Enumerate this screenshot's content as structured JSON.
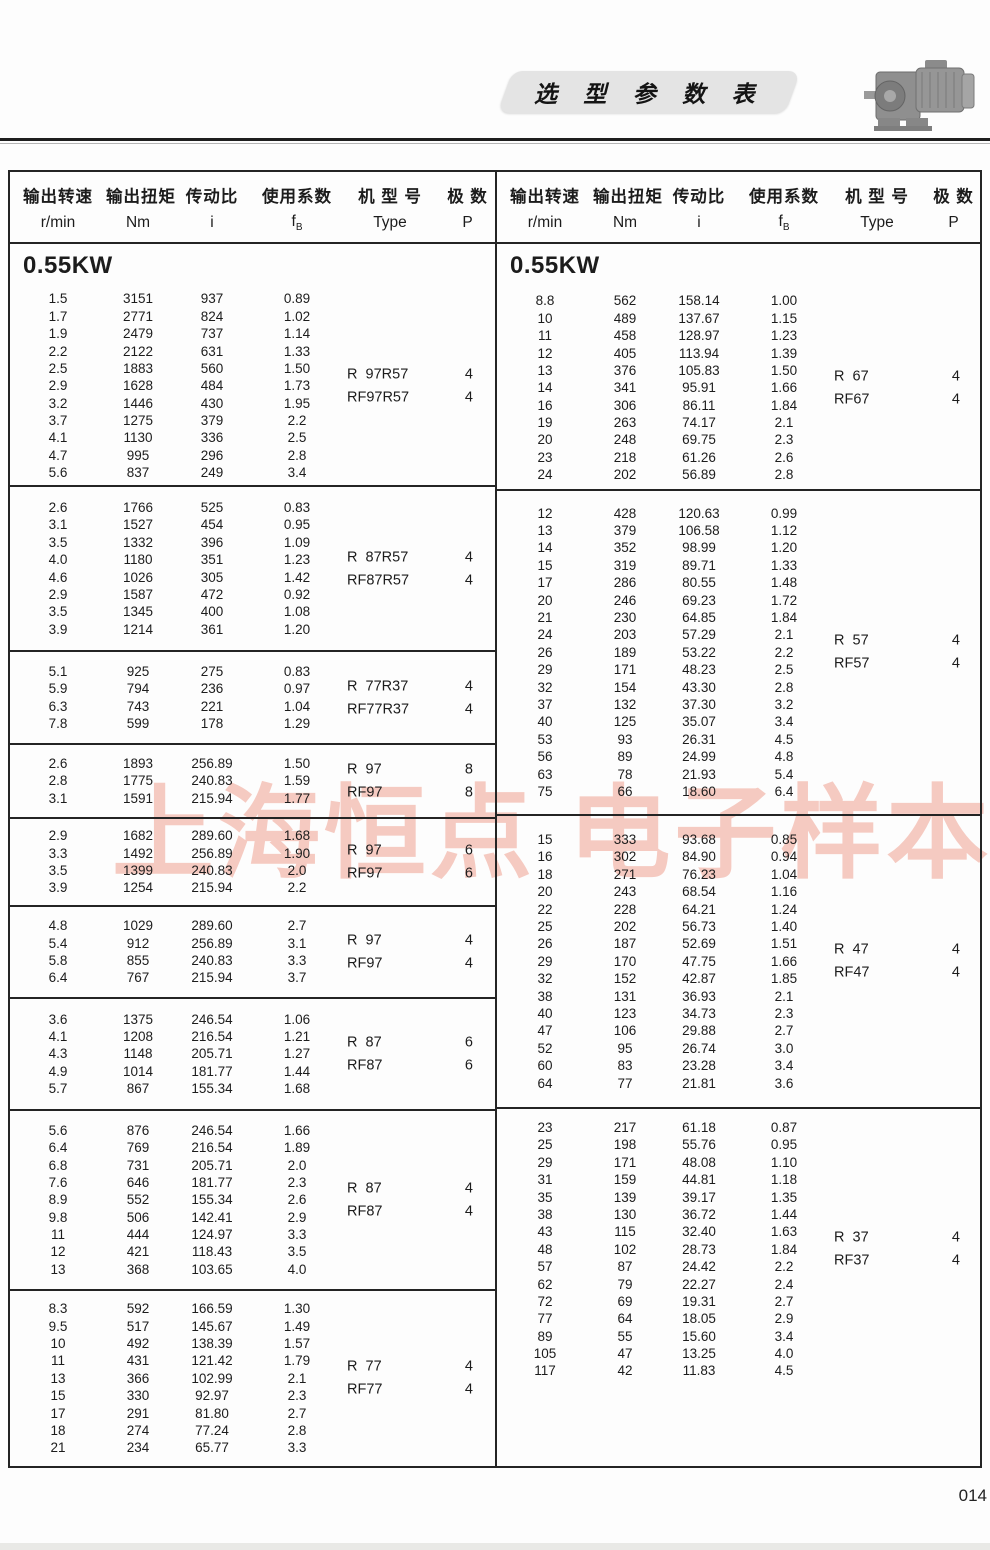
{
  "page": {
    "title": "选 型 参 数 表",
    "watermark": "上海恒点 电子样本",
    "page_number": "014"
  },
  "header": {
    "labels": [
      "输出转速",
      "输出扭矩",
      "传动比",
      "使用系数",
      "机 型 号",
      "极  数"
    ],
    "units": [
      "r/min",
      "Nm",
      "i",
      "fB",
      "Type",
      "P"
    ],
    "fb_base": "f",
    "fb_sub": "B"
  },
  "left_table": {
    "power": "0.55KW",
    "blocks": [
      {
        "rows": [
          [
            "1.5",
            "3151",
            "937",
            "0.89"
          ],
          [
            "1.7",
            "2771",
            "824",
            "1.02"
          ],
          [
            "1.9",
            "2479",
            "737",
            "1.14"
          ],
          [
            "2.2",
            "2122",
            "631",
            "1.33"
          ],
          [
            "2.5",
            "1883",
            "560",
            "1.50"
          ],
          [
            "2.9",
            "1628",
            "484",
            "1.73"
          ],
          [
            "3.2",
            "1446",
            "430",
            "1.95"
          ],
          [
            "3.7",
            "1275",
            "379",
            "2.2"
          ],
          [
            "4.1",
            "1130",
            "336",
            "2.5"
          ],
          [
            "4.7",
            "995",
            "296",
            "2.8"
          ],
          [
            "5.6",
            "837",
            "249",
            "3.4"
          ]
        ],
        "types": [
          {
            "label": "R  97R57",
            "p": "4"
          },
          {
            "label": "RF97R57",
            "p": "4"
          }
        ]
      },
      {
        "rows": [
          [
            "2.6",
            "1766",
            "525",
            "0.83"
          ],
          [
            "3.1",
            "1527",
            "454",
            "0.95"
          ],
          [
            "3.5",
            "1332",
            "396",
            "1.09"
          ],
          [
            "4.0",
            "1180",
            "351",
            "1.23"
          ],
          [
            "4.6",
            "1026",
            "305",
            "1.42"
          ],
          [
            "2.9",
            "1587",
            "472",
            "0.92"
          ],
          [
            "3.5",
            "1345",
            "400",
            "1.08"
          ],
          [
            "3.9",
            "1214",
            "361",
            "1.20"
          ]
        ],
        "types": [
          {
            "label": "R  87R57",
            "p": "4"
          },
          {
            "label": "RF87R57",
            "p": "4"
          }
        ]
      },
      {
        "rows": [
          [
            "5.1",
            "925",
            "275",
            "0.83"
          ],
          [
            "5.9",
            "794",
            "236",
            "0.97"
          ],
          [
            "6.3",
            "743",
            "221",
            "1.04"
          ],
          [
            "7.8",
            "599",
            "178",
            "1.29"
          ]
        ],
        "types": [
          {
            "label": "R  77R37",
            "p": "4"
          },
          {
            "label": "RF77R37",
            "p": "4"
          }
        ]
      },
      {
        "rows": [
          [
            "2.6",
            "1893",
            "256.89",
            "1.50"
          ],
          [
            "2.8",
            "1775",
            "240.83",
            "1.59"
          ],
          [
            "3.1",
            "1591",
            "215.94",
            "1.77"
          ]
        ],
        "types": [
          {
            "label": "R  97",
            "p": "8"
          },
          {
            "label": "RF97",
            "p": "8"
          }
        ]
      },
      {
        "rows": [
          [
            "2.9",
            "1682",
            "289.60",
            "1.68"
          ],
          [
            "3.3",
            "1492",
            "256.89",
            "1.90"
          ],
          [
            "3.5",
            "1399",
            "240.83",
            "2.0"
          ],
          [
            "3.9",
            "1254",
            "215.94",
            "2.2"
          ]
        ],
        "types": [
          {
            "label": "R  97",
            "p": "6"
          },
          {
            "label": "RF97",
            "p": "6"
          }
        ]
      },
      {
        "rows": [
          [
            "4.8",
            "1029",
            "289.60",
            "2.7"
          ],
          [
            "5.4",
            "912",
            "256.89",
            "3.1"
          ],
          [
            "5.8",
            "855",
            "240.83",
            "3.3"
          ],
          [
            "6.4",
            "767",
            "215.94",
            "3.7"
          ]
        ],
        "types": [
          {
            "label": "R  97",
            "p": "4"
          },
          {
            "label": "RF97",
            "p": "4"
          }
        ]
      },
      {
        "rows": [
          [
            "3.6",
            "1375",
            "246.54",
            "1.06"
          ],
          [
            "4.1",
            "1208",
            "216.54",
            "1.21"
          ],
          [
            "4.3",
            "1148",
            "205.71",
            "1.27"
          ],
          [
            "4.9",
            "1014",
            "181.77",
            "1.44"
          ],
          [
            "5.7",
            "867",
            "155.34",
            "1.68"
          ]
        ],
        "types": [
          {
            "label": "R  87",
            "p": "6"
          },
          {
            "label": "RF87",
            "p": "6"
          }
        ]
      },
      {
        "rows": [
          [
            "5.6",
            "876",
            "246.54",
            "1.66"
          ],
          [
            "6.4",
            "769",
            "216.54",
            "1.89"
          ],
          [
            "6.8",
            "731",
            "205.71",
            "2.0"
          ],
          [
            "7.6",
            "646",
            "181.77",
            "2.3"
          ],
          [
            "8.9",
            "552",
            "155.34",
            "2.6"
          ],
          [
            "9.8",
            "506",
            "142.41",
            "2.9"
          ],
          [
            "11",
            "444",
            "124.97",
            "3.3"
          ],
          [
            "12",
            "421",
            "118.43",
            "3.5"
          ],
          [
            "13",
            "368",
            "103.65",
            "4.0"
          ]
        ],
        "types": [
          {
            "label": "R  87",
            "p": "4"
          },
          {
            "label": "RF87",
            "p": "4"
          }
        ]
      },
      {
        "rows": [
          [
            "8.3",
            "592",
            "166.59",
            "1.30"
          ],
          [
            "9.5",
            "517",
            "145.67",
            "1.49"
          ],
          [
            "10",
            "492",
            "138.39",
            "1.57"
          ],
          [
            "11",
            "431",
            "121.42",
            "1.79"
          ],
          [
            "13",
            "366",
            "102.99",
            "2.1"
          ],
          [
            "15",
            "330",
            "92.97",
            "2.3"
          ],
          [
            "17",
            "291",
            "81.80",
            "2.7"
          ],
          [
            "18",
            "274",
            "77.24",
            "2.8"
          ],
          [
            "21",
            "234",
            "65.77",
            "3.3"
          ]
        ],
        "types": [
          {
            "label": "R  77",
            "p": "4"
          },
          {
            "label": "RF77",
            "p": "4"
          }
        ]
      }
    ]
  },
  "right_table": {
    "power": "0.55KW",
    "blocks": [
      {
        "rows": [
          [
            "8.8",
            "562",
            "158.14",
            "1.00"
          ],
          [
            "10",
            "489",
            "137.67",
            "1.15"
          ],
          [
            "11",
            "458",
            "128.97",
            "1.23"
          ],
          [
            "12",
            "405",
            "113.94",
            "1.39"
          ],
          [
            "13",
            "376",
            "105.83",
            "1.50"
          ],
          [
            "14",
            "341",
            "95.91",
            "1.66"
          ],
          [
            "16",
            "306",
            "86.11",
            "1.84"
          ],
          [
            "19",
            "263",
            "74.17",
            "2.1"
          ],
          [
            "20",
            "248",
            "69.75",
            "2.3"
          ],
          [
            "23",
            "218",
            "61.26",
            "2.6"
          ],
          [
            "24",
            "202",
            "56.89",
            "2.8"
          ]
        ],
        "types": [
          {
            "label": "R  67",
            "p": "4"
          },
          {
            "label": "RF67",
            "p": "4"
          }
        ]
      },
      {
        "rows": [
          [
            "12",
            "428",
            "120.63",
            "0.99"
          ],
          [
            "13",
            "379",
            "106.58",
            "1.12"
          ],
          [
            "14",
            "352",
            "98.99",
            "1.20"
          ],
          [
            "15",
            "319",
            "89.71",
            "1.33"
          ],
          [
            "17",
            "286",
            "80.55",
            "1.48"
          ],
          [
            "20",
            "246",
            "69.23",
            "1.72"
          ],
          [
            "21",
            "230",
            "64.85",
            "1.84"
          ],
          [
            "24",
            "203",
            "57.29",
            "2.1"
          ],
          [
            "26",
            "189",
            "53.22",
            "2.2"
          ],
          [
            "29",
            "171",
            "48.23",
            "2.5"
          ],
          [
            "32",
            "154",
            "43.30",
            "2.8"
          ],
          [
            "37",
            "132",
            "37.30",
            "3.2"
          ],
          [
            "40",
            "125",
            "35.07",
            "3.4"
          ],
          [
            "53",
            "93",
            "26.31",
            "4.5"
          ],
          [
            "56",
            "89",
            "24.99",
            "4.8"
          ],
          [
            "63",
            "78",
            "21.93",
            "5.4"
          ],
          [
            "75",
            "66",
            "18.60",
            "6.4"
          ]
        ],
        "types": [
          {
            "label": "R  57",
            "p": "4"
          },
          {
            "label": "RF57",
            "p": "4"
          }
        ]
      },
      {
        "rows": [
          [
            "15",
            "333",
            "93.68",
            "0.85"
          ],
          [
            "16",
            "302",
            "84.90",
            "0.94"
          ],
          [
            "18",
            "271",
            "76.23",
            "1.04"
          ],
          [
            "20",
            "243",
            "68.54",
            "1.16"
          ],
          [
            "22",
            "228",
            "64.21",
            "1.24"
          ],
          [
            "25",
            "202",
            "56.73",
            "1.40"
          ],
          [
            "26",
            "187",
            "52.69",
            "1.51"
          ],
          [
            "29",
            "170",
            "47.75",
            "1.66"
          ],
          [
            "32",
            "152",
            "42.87",
            "1.85"
          ],
          [
            "38",
            "131",
            "36.93",
            "2.1"
          ],
          [
            "40",
            "123",
            "34.73",
            "2.3"
          ],
          [
            "47",
            "106",
            "29.88",
            "2.7"
          ],
          [
            "52",
            "95",
            "26.74",
            "3.0"
          ],
          [
            "60",
            "83",
            "23.28",
            "3.4"
          ],
          [
            "64",
            "77",
            "21.81",
            "3.6"
          ]
        ],
        "types": [
          {
            "label": "R  47",
            "p": "4"
          },
          {
            "label": "RF47",
            "p": "4"
          }
        ]
      },
      {
        "rows": [
          [
            "23",
            "217",
            "61.18",
            "0.87"
          ],
          [
            "25",
            "198",
            "55.76",
            "0.95"
          ],
          [
            "29",
            "171",
            "48.08",
            "1.10"
          ],
          [
            "31",
            "159",
            "44.81",
            "1.18"
          ],
          [
            "35",
            "139",
            "39.17",
            "1.35"
          ],
          [
            "38",
            "130",
            "36.72",
            "1.44"
          ],
          [
            "43",
            "115",
            "32.40",
            "1.63"
          ],
          [
            "48",
            "102",
            "28.73",
            "1.84"
          ],
          [
            "57",
            "87",
            "24.42",
            "2.2"
          ],
          [
            "62",
            "79",
            "22.27",
            "2.4"
          ],
          [
            "72",
            "69",
            "19.31",
            "2.7"
          ],
          [
            "77",
            "64",
            "18.05",
            "2.9"
          ],
          [
            "89",
            "55",
            "15.60",
            "3.4"
          ],
          [
            "105",
            "47",
            "13.25",
            "4.0"
          ],
          [
            "117",
            "42",
            "11.83",
            "4.5"
          ]
        ],
        "types": [
          {
            "label": "R  37",
            "p": "4"
          },
          {
            "label": "RF37",
            "p": "4"
          }
        ]
      }
    ]
  }
}
